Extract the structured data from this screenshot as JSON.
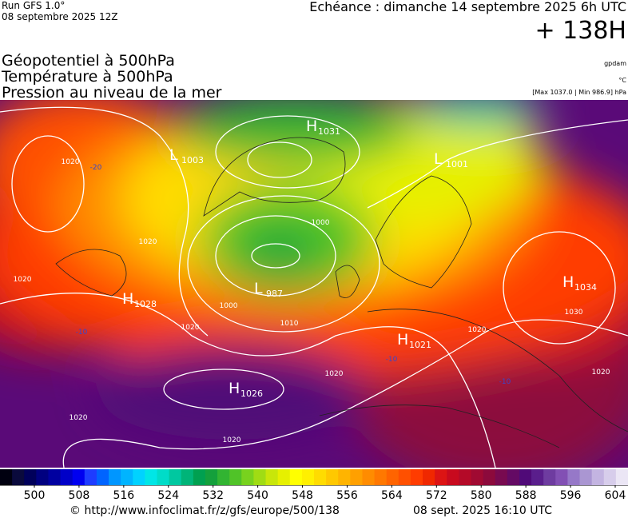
{
  "header": {
    "run": "Run GFS 1.0°",
    "run_date": "08 septembre 2025 12Z",
    "valid": "Echéance : dimanche 14 septembre 2025 6h UTC",
    "lead": "+ 138H"
  },
  "fields": [
    "Géopotentiel à 500hPa",
    "Température à 500hPa",
    "Pression au niveau de la mer"
  ],
  "units": {
    "geopotential": "gpdam",
    "temperature": "°C",
    "pressure": "[Max 1037.0 | Min 986.9] hPa"
  },
  "centers": [
    {
      "letter": "H",
      "value": 1031
    },
    {
      "letter": "L",
      "value": 1003
    },
    {
      "letter": "L",
      "value": 1001
    },
    {
      "letter": "L",
      "value": 987
    },
    {
      "letter": "H",
      "value": 1028
    },
    {
      "letter": "H",
      "value": 1021
    },
    {
      "letter": "H",
      "value": 1034
    },
    {
      "letter": "H",
      "value": 1026
    }
  ],
  "isobar_labels": [
    1020,
    1020,
    1020,
    1020,
    1000,
    1010,
    1000,
    1030,
    1020,
    1020,
    1020,
    1020,
    1020
  ],
  "temperature_labels": [
    -20,
    -10,
    -10,
    -10
  ],
  "colorbar": {
    "ticks": [
      500,
      508,
      516,
      524,
      532,
      540,
      548,
      556,
      564,
      572,
      580,
      588,
      596,
      604
    ],
    "colors": [
      "#000010",
      "#0a0a3c",
      "#00005a",
      "#000080",
      "#0000a0",
      "#0000c8",
      "#0000f0",
      "#1e3cff",
      "#0064ff",
      "#0096ff",
      "#00b4ff",
      "#00d2ff",
      "#00e6e6",
      "#00dcc8",
      "#00c8a0",
      "#00b478",
      "#00a050",
      "#14a03c",
      "#32b432",
      "#50c328",
      "#78d21e",
      "#a0dc14",
      "#c8e60a",
      "#e6f000",
      "#ffff00",
      "#fff000",
      "#ffdc00",
      "#ffc800",
      "#ffb400",
      "#ffa000",
      "#ff8c00",
      "#ff7800",
      "#ff6400",
      "#ff5000",
      "#ff3c00",
      "#f02800",
      "#dc1414",
      "#c80a1e",
      "#b40a28",
      "#a00a32",
      "#8c0a3c",
      "#780a50",
      "#640a64",
      "#500a78",
      "#5a1e8c",
      "#6e3ca0",
      "#8250b4",
      "#9678c8",
      "#aa96d2",
      "#c3b4e1",
      "#d7cdeb",
      "#ebe6f5"
    ]
  },
  "footer": {
    "source": "© http://www.infoclimat.fr/z/gfs/europe/500/138",
    "generated": "08 sept. 2025 16:10 UTC"
  }
}
